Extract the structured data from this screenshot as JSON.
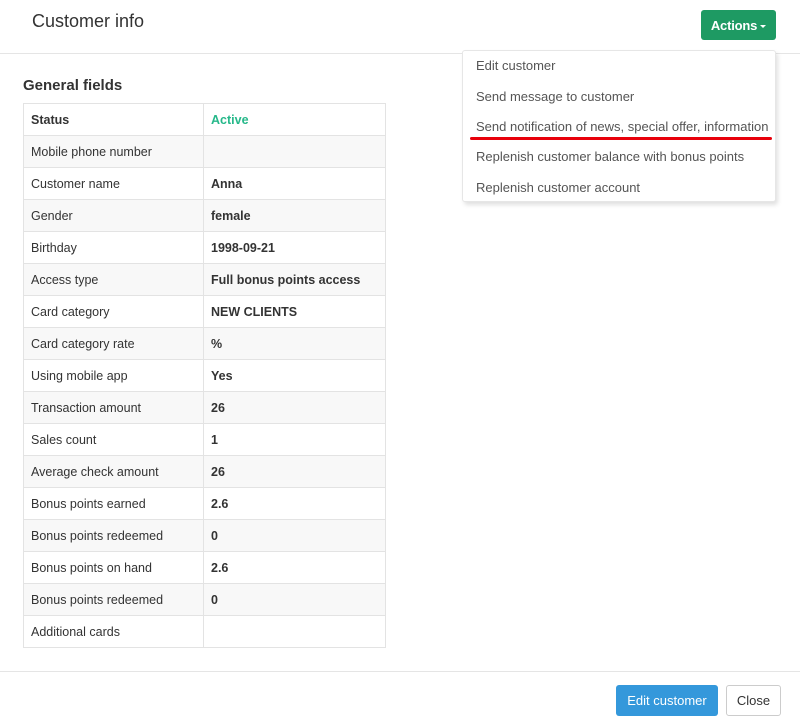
{
  "header": {
    "title": "Customer info",
    "actions_label": "Actions"
  },
  "actions_menu": {
    "items": [
      "Edit customer",
      "Send message to customer",
      "Send notification of news, special offer, information",
      "Replenish customer balance with bonus points",
      "Replenish customer account"
    ],
    "highlight_color": "#e8000b"
  },
  "section_title": "General fields",
  "fields": [
    {
      "label": "Status",
      "value": "Active"
    },
    {
      "label": "Mobile phone number",
      "value": ""
    },
    {
      "label": "Customer name",
      "value": "Anna"
    },
    {
      "label": "Gender",
      "value": "female"
    },
    {
      "label": "Birthday",
      "value": "1998-09-21"
    },
    {
      "label": "Access type",
      "value": "Full bonus points access"
    },
    {
      "label": "Card category",
      "value": "NEW CLIENTS"
    },
    {
      "label": "Card category rate",
      "value": "%"
    },
    {
      "label": "Using mobile app",
      "value": "Yes"
    },
    {
      "label": "Transaction amount",
      "value": "26"
    },
    {
      "label": "Sales count",
      "value": "1"
    },
    {
      "label": "Average check amount",
      "value": "26"
    },
    {
      "label": "Bonus points earned",
      "value": "2.6"
    },
    {
      "label": "Bonus points redeemed",
      "value": "0"
    },
    {
      "label": "Bonus points on hand",
      "value": "2.6"
    },
    {
      "label": "Bonus points redeemed",
      "value": "0"
    },
    {
      "label": "Additional cards",
      "value": ""
    }
  ],
  "footer": {
    "edit_label": "Edit customer",
    "close_label": "Close"
  },
  "colors": {
    "actions": "#1e9a63",
    "primary": "#3498db",
    "status_active": "#26b88a"
  }
}
